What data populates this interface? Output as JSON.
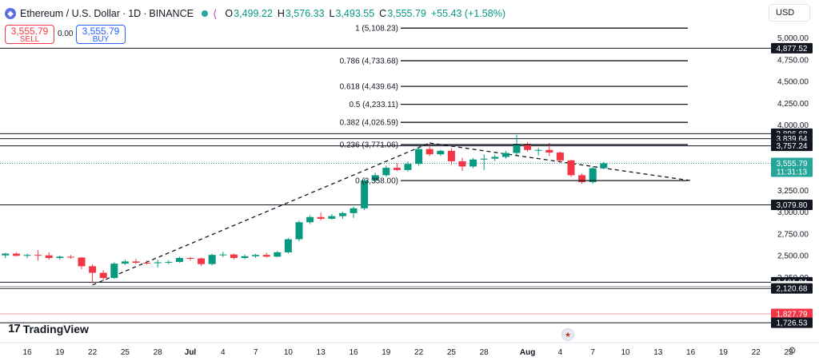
{
  "header": {
    "symbol": "Ethereum / U.S. Dollar",
    "interval": "1D",
    "exchange": "BINANCE",
    "open_label": "O",
    "open": "3,499.22",
    "high_label": "H",
    "high": "3,576.33",
    "low_label": "L",
    "low": "3,493.55",
    "close_label": "C",
    "close": "3,555.79",
    "change": "+55.43 (+1.58%)"
  },
  "trade": {
    "sell_price": "3,555.79",
    "sell_label": "SELL",
    "spread": "0.00",
    "buy_price": "3,555.79",
    "buy_label": "BUY"
  },
  "currency": "USD",
  "branding": "TradingView",
  "colors": {
    "up": "#089981",
    "down": "#f23645",
    "accent": "#2962ff",
    "line": "#131722",
    "last": "#26a69a"
  },
  "chart_data": {
    "type": "candlestick",
    "title": "Ethereum / U.S. Dollar · 1D · BINANCE",
    "ylim": [
      1700,
      5250
    ],
    "y_ticks": [
      2250,
      2500,
      2750,
      3000,
      3250,
      3500,
      3750,
      4000,
      4250,
      4500,
      4750,
      5000
    ],
    "y_tick_labels": [
      "2,250.00",
      "2,500.00",
      "2,750.00",
      "3,000.00",
      "3,250.00",
      "3,500.00",
      "3,750.00",
      "4,000.00",
      "4,250.00",
      "4,500.00",
      "4,750.00",
      "5,000.00"
    ],
    "x_ticks": [
      {
        "day": 0,
        "label": "16"
      },
      {
        "day": 3,
        "label": "19"
      },
      {
        "day": 6,
        "label": "22"
      },
      {
        "day": 9,
        "label": "25"
      },
      {
        "day": 12,
        "label": "28"
      },
      {
        "day": 15,
        "label": "Jul"
      },
      {
        "day": 18,
        "label": "4"
      },
      {
        "day": 21,
        "label": "7"
      },
      {
        "day": 24,
        "label": "10"
      },
      {
        "day": 27,
        "label": "13"
      },
      {
        "day": 30,
        "label": "16"
      },
      {
        "day": 33,
        "label": "19"
      },
      {
        "day": 36,
        "label": "22"
      },
      {
        "day": 39,
        "label": "25"
      },
      {
        "day": 42,
        "label": "28"
      },
      {
        "day": 46,
        "label": "Aug"
      },
      {
        "day": 49,
        "label": "4"
      },
      {
        "day": 52,
        "label": "7"
      },
      {
        "day": 55,
        "label": "10"
      },
      {
        "day": 58,
        "label": "13"
      },
      {
        "day": 61,
        "label": "16"
      },
      {
        "day": 64,
        "label": "19"
      },
      {
        "day": 67,
        "label": "22"
      },
      {
        "day": 70,
        "label": "25"
      }
    ],
    "candles": [
      [
        -2,
        2500,
        2530,
        2470,
        2520
      ],
      [
        -1,
        2520,
        2535,
        2490,
        2495
      ],
      [
        0,
        2495,
        2520,
        2470,
        2505
      ],
      [
        1,
        2505,
        2560,
        2440,
        2500
      ],
      [
        2,
        2500,
        2535,
        2450,
        2470
      ],
      [
        3,
        2470,
        2500,
        2450,
        2485
      ],
      [
        4,
        2485,
        2505,
        2460,
        2475
      ],
      [
        5,
        2475,
        2480,
        2340,
        2375
      ],
      [
        6,
        2375,
        2395,
        2180,
        2300
      ],
      [
        7,
        2300,
        2330,
        2210,
        2240
      ],
      [
        8,
        2240,
        2420,
        2230,
        2405
      ],
      [
        9,
        2405,
        2450,
        2390,
        2430
      ],
      [
        10,
        2430,
        2460,
        2400,
        2415
      ],
      [
        11,
        2415,
        2440,
        2395,
        2410
      ],
      [
        12,
        2410,
        2450,
        2360,
        2420
      ],
      [
        13,
        2420,
        2445,
        2400,
        2425
      ],
      [
        14,
        2425,
        2485,
        2415,
        2470
      ],
      [
        15,
        2470,
        2480,
        2440,
        2465
      ],
      [
        16,
        2465,
        2475,
        2380,
        2400
      ],
      [
        17,
        2400,
        2520,
        2385,
        2505
      ],
      [
        18,
        2505,
        2540,
        2480,
        2510
      ],
      [
        19,
        2510,
        2520,
        2455,
        2470
      ],
      [
        20,
        2470,
        2510,
        2455,
        2490
      ],
      [
        21,
        2490,
        2520,
        2470,
        2505
      ],
      [
        22,
        2505,
        2530,
        2475,
        2485
      ],
      [
        23,
        2485,
        2550,
        2480,
        2535
      ],
      [
        24,
        2535,
        2700,
        2520,
        2685
      ],
      [
        25,
        2685,
        2900,
        2660,
        2880
      ],
      [
        26,
        2880,
        2960,
        2860,
        2940
      ],
      [
        27,
        2940,
        2990,
        2900,
        2920
      ],
      [
        28,
        2920,
        2975,
        2910,
        2950
      ],
      [
        29,
        2950,
        3000,
        2920,
        2985
      ],
      [
        30,
        2985,
        3060,
        2930,
        3040
      ],
      [
        31,
        3040,
        3380,
        3020,
        3360
      ],
      [
        32,
        3360,
        3450,
        3340,
        3420
      ],
      [
        33,
        3420,
        3530,
        3400,
        3505
      ],
      [
        34,
        3505,
        3560,
        3470,
        3480
      ],
      [
        35,
        3480,
        3580,
        3460,
        3550
      ],
      [
        36,
        3550,
        3750,
        3530,
        3720
      ],
      [
        37,
        3720,
        3770,
        3640,
        3660
      ],
      [
        38,
        3660,
        3710,
        3640,
        3700
      ],
      [
        39,
        3700,
        3730,
        3540,
        3580
      ],
      [
        40,
        3580,
        3620,
        3470,
        3520
      ],
      [
        41,
        3520,
        3620,
        3500,
        3600
      ],
      [
        42,
        3600,
        3660,
        3480,
        3610
      ],
      [
        43,
        3610,
        3655,
        3580,
        3630
      ],
      [
        44,
        3630,
        3700,
        3610,
        3675
      ],
      [
        45,
        3675,
        3880,
        3650,
        3780
      ],
      [
        46,
        3780,
        3800,
        3690,
        3710
      ],
      [
        47,
        3710,
        3730,
        3650,
        3710
      ],
      [
        48,
        3710,
        3790,
        3640,
        3680
      ],
      [
        49,
        3680,
        3690,
        3560,
        3590
      ],
      [
        50,
        3590,
        3600,
        3400,
        3420
      ],
      [
        51,
        3420,
        3440,
        3320,
        3340
      ],
      [
        52,
        3340,
        3520,
        3320,
        3500
      ],
      [
        53,
        3500,
        3576,
        3493,
        3556
      ]
    ],
    "fibonacci": [
      {
        "ratio": "1",
        "price": 5108.23,
        "label": "1 (5,108.23)"
      },
      {
        "ratio": "0.786",
        "price": 4733.68,
        "label": "0.786 (4,733.68)"
      },
      {
        "ratio": "0.618",
        "price": 4439.64,
        "label": "0.618 (4,439.64)"
      },
      {
        "ratio": "0.5",
        "price": 4233.11,
        "label": "0.5 (4,233.11)"
      },
      {
        "ratio": "0.382",
        "price": 4026.59,
        "label": "0.382 (4,026.59)"
      },
      {
        "ratio": "0.236",
        "price": 3771.06,
        "label": "0.236 (3,771.06)"
      },
      {
        "ratio": "0",
        "price": 3358.0,
        "label": "0 (3,358.00)"
      }
    ],
    "horizontal_levels": [
      {
        "price": 4877.52,
        "label": "4,877.52",
        "style": "dark"
      },
      {
        "price": 3896.68,
        "label": "3,896.68",
        "style": "dark"
      },
      {
        "price": 3839.64,
        "label": "3,839.64",
        "style": "dark"
      },
      {
        "price": 3757.24,
        "label": "3,757.24",
        "style": "dark"
      },
      {
        "price": 3079.8,
        "label": "3,079.80",
        "style": "dark"
      },
      {
        "price": 2191.84,
        "label": "2,191.84",
        "style": "dark"
      },
      {
        "price": 2145.37,
        "label": "2,145.37",
        "style": "light"
      },
      {
        "price": 2120.68,
        "label": "2,120.68",
        "style": "dark"
      },
      {
        "price": 1827.79,
        "label": "1,827.79",
        "style": "red"
      },
      {
        "price": 1726.53,
        "label": "1,726.53",
        "style": "dark"
      }
    ],
    "last_price": {
      "price": 3555.79,
      "label": "3,555.79",
      "countdown": "11:31:13"
    },
    "trendlines": [
      {
        "from": [
          6,
          2160
        ],
        "to": [
          37,
          3790
        ]
      },
      {
        "from": [
          37,
          3790
        ],
        "to": [
          61,
          3358
        ]
      }
    ]
  }
}
